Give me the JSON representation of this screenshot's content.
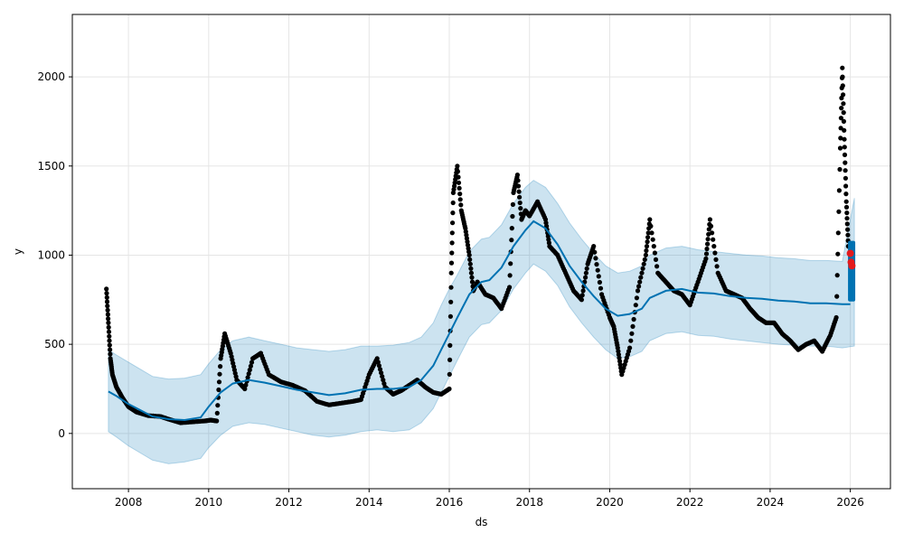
{
  "chart_data": {
    "type": "line",
    "title": "",
    "xlabel": "ds",
    "ylabel": "y",
    "xlim": [
      2006.6,
      2027.0
    ],
    "ylim": [
      -310,
      2350
    ],
    "grid": true,
    "x_ticks": [
      2008,
      2010,
      2012,
      2014,
      2016,
      2018,
      2020,
      2022,
      2024,
      2026
    ],
    "x_tick_labels": [
      "2008",
      "2010",
      "2012",
      "2014",
      "2016",
      "2018",
      "2020",
      "2022",
      "2024",
      "2026"
    ],
    "y_ticks": [
      0,
      500,
      1000,
      1500,
      2000
    ],
    "y_tick_labels": [
      "0",
      "500",
      "1000",
      "1500",
      "2000"
    ],
    "colors": {
      "forecast": "#0072B2",
      "uncertainty": "#0072B2",
      "observed": "#000000",
      "highlight": "#e41a1c",
      "grid": "#e5e5e5"
    },
    "series": [
      {
        "role": "forecast_trend",
        "x": [
          2007.5,
          2007.7,
          2008.0,
          2008.3,
          2008.6,
          2009.0,
          2009.4,
          2009.8,
          2010.0,
          2010.3,
          2010.6,
          2011.0,
          2011.4,
          2011.8,
          2012.2,
          2012.6,
          2013.0,
          2013.4,
          2013.8,
          2014.2,
          2014.6,
          2015.0,
          2015.3,
          2015.6,
          2015.8,
          2016.0,
          2016.2,
          2016.5,
          2016.8,
          2017.0,
          2017.3,
          2017.6,
          2017.9,
          2018.1,
          2018.4,
          2018.7,
          2019.0,
          2019.3,
          2019.6,
          2019.9,
          2020.2,
          2020.5,
          2020.8,
          2021.0,
          2021.4,
          2021.8,
          2022.2,
          2022.6,
          2023.0,
          2023.4,
          2023.8,
          2024.2,
          2024.6,
          2025.0,
          2025.4,
          2025.8,
          2026.0
        ],
        "y": [
          235,
          210,
          165,
          130,
          95,
          80,
          75,
          90,
          150,
          230,
          280,
          300,
          285,
          265,
          245,
          230,
          215,
          225,
          245,
          250,
          250,
          260,
          300,
          380,
          470,
          560,
          650,
          780,
          850,
          860,
          930,
          1050,
          1140,
          1190,
          1150,
          1060,
          940,
          850,
          770,
          700,
          660,
          670,
          700,
          760,
          800,
          810,
          790,
          785,
          770,
          760,
          755,
          745,
          740,
          730,
          730,
          725,
          725
        ]
      },
      {
        "role": "uncertainty_band",
        "x": [
          2007.5,
          2007.7,
          2008.0,
          2008.3,
          2008.6,
          2009.0,
          2009.4,
          2009.8,
          2010.0,
          2010.3,
          2010.6,
          2011.0,
          2011.4,
          2011.8,
          2012.2,
          2012.6,
          2013.0,
          2013.4,
          2013.8,
          2014.2,
          2014.6,
          2015.0,
          2015.3,
          2015.6,
          2015.8,
          2016.0,
          2016.2,
          2016.5,
          2016.8,
          2017.0,
          2017.3,
          2017.6,
          2017.9,
          2018.1,
          2018.4,
          2018.7,
          2019.0,
          2019.3,
          2019.6,
          2019.9,
          2020.2,
          2020.5,
          2020.8,
          2021.0,
          2021.4,
          2021.8,
          2022.2,
          2022.6,
          2023.0,
          2023.4,
          2023.8,
          2024.2,
          2024.6,
          2025.0,
          2025.4,
          2025.8,
          2026.1
        ],
        "upper": [
          470,
          440,
          400,
          360,
          320,
          305,
          310,
          330,
          390,
          470,
          520,
          540,
          520,
          500,
          480,
          470,
          460,
          470,
          490,
          490,
          495,
          510,
          540,
          620,
          720,
          810,
          890,
          1020,
          1090,
          1100,
          1170,
          1290,
          1380,
          1420,
          1380,
          1290,
          1180,
          1090,
          1010,
          940,
          900,
          910,
          940,
          1000,
          1040,
          1050,
          1030,
          1020,
          1010,
          1000,
          995,
          985,
          980,
          970,
          970,
          965,
          1320
        ],
        "lower": [
          10,
          -20,
          -70,
          -110,
          -150,
          -170,
          -160,
          -140,
          -80,
          -10,
          40,
          60,
          50,
          30,
          10,
          -10,
          -20,
          -10,
          10,
          20,
          10,
          20,
          60,
          140,
          230,
          320,
          410,
          540,
          610,
          620,
          690,
          810,
          900,
          950,
          910,
          830,
          710,
          620,
          540,
          470,
          420,
          430,
          460,
          520,
          560,
          570,
          550,
          545,
          530,
          520,
          510,
          500,
          495,
          490,
          490,
          480,
          490
        ]
      },
      {
        "role": "observed",
        "x": [
          2007.45,
          2007.5,
          2007.55,
          2007.6,
          2007.7,
          2007.85,
          2008.0,
          2008.2,
          2008.5,
          2008.8,
          2009.0,
          2009.3,
          2009.6,
          2009.9,
          2010.05,
          2010.2,
          2010.3,
          2010.4,
          2010.55,
          2010.7,
          2010.9,
          2011.1,
          2011.3,
          2011.5,
          2011.8,
          2012.1,
          2012.4,
          2012.7,
          2013.0,
          2013.3,
          2013.6,
          2013.8,
          2014.0,
          2014.2,
          2014.4,
          2014.6,
          2014.8,
          2015.0,
          2015.2,
          2015.4,
          2015.6,
          2015.8,
          2016.0,
          2016.05,
          2016.1,
          2016.2,
          2016.3,
          2016.4,
          2016.5,
          2016.6,
          2016.7,
          2016.9,
          2017.1,
          2017.3,
          2017.5,
          2017.6,
          2017.7,
          2017.8,
          2017.9,
          2018.0,
          2018.2,
          2018.4,
          2018.5,
          2018.7,
          2018.9,
          2019.1,
          2019.3,
          2019.45,
          2019.6,
          2019.8,
          2020.0,
          2020.1,
          2020.2,
          2020.3,
          2020.5,
          2020.7,
          2020.9,
          2021.0,
          2021.2,
          2021.4,
          2021.6,
          2021.8,
          2022.0,
          2022.2,
          2022.4,
          2022.5,
          2022.7,
          2022.9,
          2023.1,
          2023.3,
          2023.5,
          2023.7,
          2023.9,
          2024.1,
          2024.3,
          2024.5,
          2024.7,
          2024.9,
          2025.1,
          2025.3,
          2025.5,
          2025.65,
          2025.75,
          2025.8,
          2025.85,
          2025.9,
          2025.95
        ],
        "y": [
          810,
          620,
          420,
          330,
          260,
          200,
          150,
          120,
          100,
          95,
          80,
          60,
          65,
          70,
          75,
          70,
          420,
          560,
          450,
          300,
          250,
          420,
          450,
          330,
          290,
          270,
          240,
          180,
          160,
          170,
          180,
          190,
          330,
          420,
          260,
          220,
          240,
          270,
          300,
          260,
          230,
          220,
          250,
          900,
          1350,
          1500,
          1250,
          1150,
          1000,
          800,
          850,
          780,
          760,
          700,
          820,
          1350,
          1450,
          1200,
          1250,
          1220,
          1300,
          1200,
          1050,
          1000,
          900,
          800,
          750,
          950,
          1050,
          780,
          650,
          600,
          480,
          330,
          480,
          800,
          1000,
          1200,
          900,
          850,
          800,
          780,
          720,
          850,
          980,
          1200,
          900,
          800,
          780,
          760,
          700,
          650,
          620,
          620,
          560,
          520,
          470,
          500,
          520,
          460,
          550,
          650,
          1600,
          2050,
          1650,
          1300,
          1050
        ],
        "category": "observed"
      },
      {
        "role": "highlight",
        "x": [
          2026.0,
          2026.02,
          2026.04
        ],
        "y": [
          1010,
          960,
          940
        ]
      }
    ]
  }
}
